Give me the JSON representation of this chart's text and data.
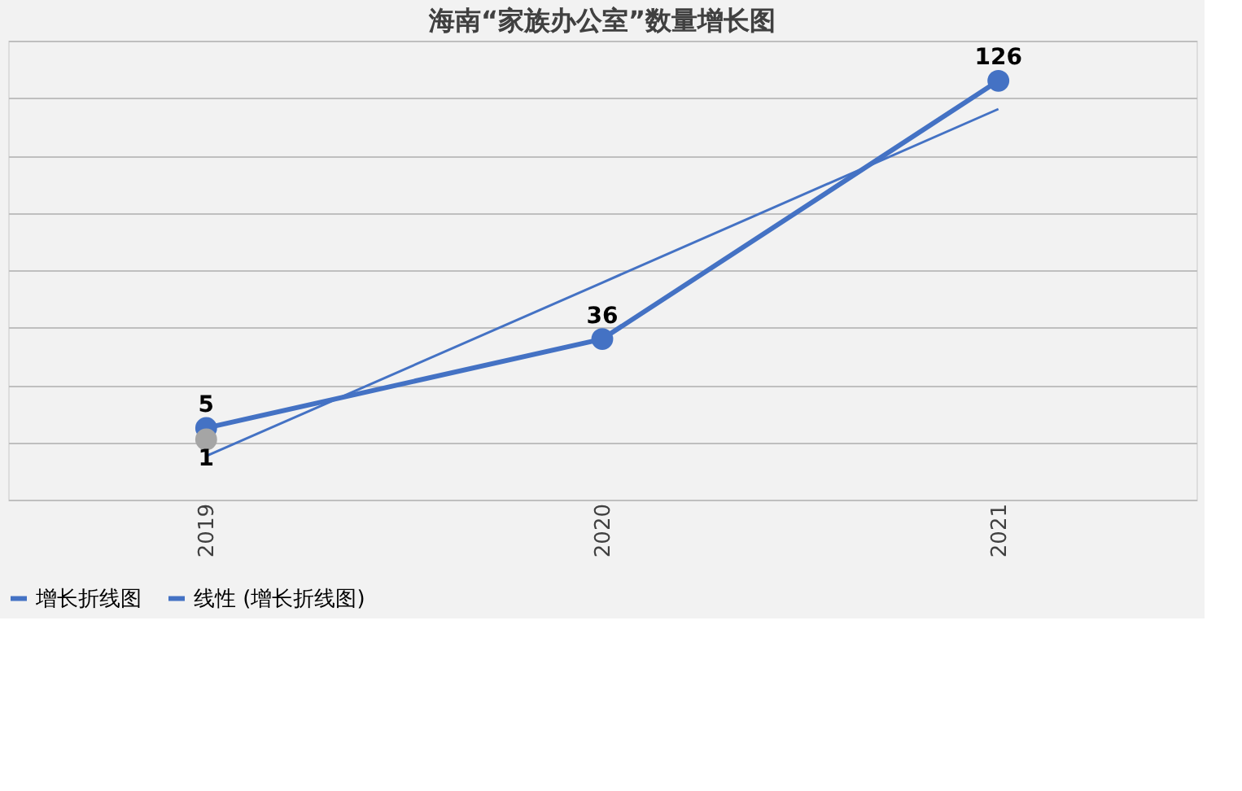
{
  "chart_data": {
    "type": "line",
    "title": "海南“家族办公室”数量增长图",
    "categories": [
      "2019",
      "2020",
      "2021"
    ],
    "series": [
      {
        "name": "增长折线图",
        "color": "#4472c4",
        "values": [
          5,
          36,
          126
        ],
        "marker": "circle",
        "value_labels": [
          "5",
          "36",
          "126"
        ]
      },
      {
        "color": "#a5a5a5",
        "values": [
          1,
          null,
          null
        ],
        "marker": "circle",
        "value_labels": [
          "1",
          null,
          null
        ]
      },
      {
        "name": "线性 (增长折线图)",
        "color": "#4472c4",
        "values": [
          -4.83,
          55.67,
          116.17
        ],
        "marker": "none"
      }
    ],
    "ylim": [
      -20,
      140
    ],
    "tick_labels": "x",
    "grid": "y",
    "legend": "bottom"
  }
}
